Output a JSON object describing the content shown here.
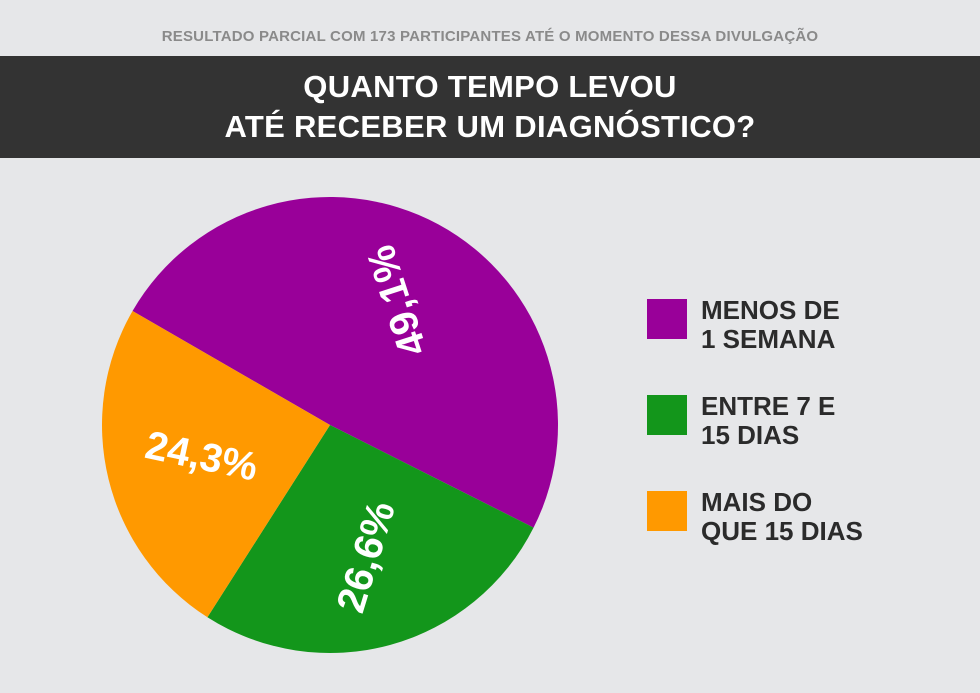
{
  "header": {
    "subtitle": "RESULTADO PARCIAL COM 173 PARTICIPANTES ATÉ O MOMENTO DESSA DIVULGAÇÃO",
    "title_line1": "QUANTO TEMPO LEVOU",
    "title_line2": "ATÉ RECEBER UM DIAGNÓSTICO?"
  },
  "chart_data": {
    "type": "pie",
    "title": "QUANTO TEMPO LEVOU ATÉ RECEBER UM DIAGNÓSTICO?",
    "subtitle": "RESULTADO PARCIAL COM 173 PARTICIPANTES ATÉ O MOMENTO DESSA DIVULGAÇÃO",
    "legend_position": "right",
    "slices": [
      {
        "label": "MENOS DE 1 SEMANA",
        "value": 49.1,
        "display": "49,1%",
        "color": "#990099"
      },
      {
        "label": "ENTRE 7 E 15 DIAS",
        "value": 26.6,
        "display": "26,6%",
        "color": "#13961b"
      },
      {
        "label": "MAIS DO QUE 15 DIAS",
        "value": 24.3,
        "display": "24,3%",
        "color": "#ff9900"
      }
    ]
  },
  "legend": {
    "items": [
      {
        "line1": "MENOS DE",
        "line2": "1 SEMANA",
        "color": "#990099"
      },
      {
        "line1": "ENTRE 7 E",
        "line2": "15 DIAS",
        "color": "#13961b"
      },
      {
        "line1": "MAIS DO",
        "line2": "QUE 15 DIAS",
        "color": "#ff9900"
      }
    ]
  }
}
